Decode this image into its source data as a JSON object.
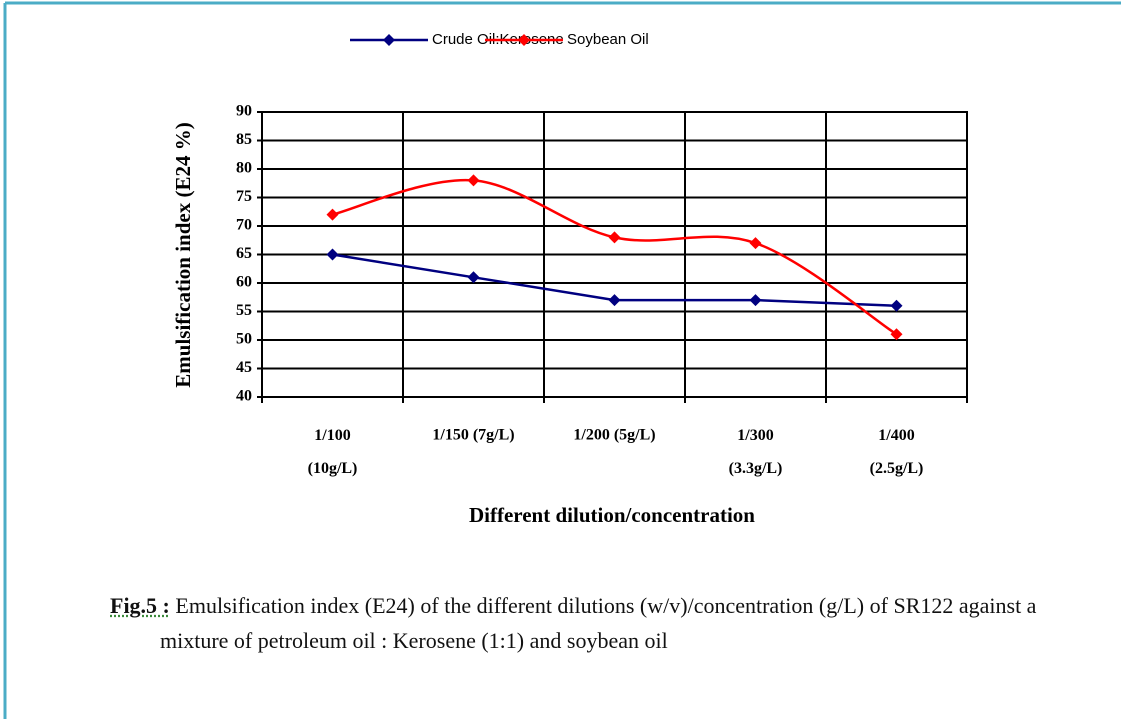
{
  "chart_data": {
    "type": "line",
    "y_label": "Emulsification index (E24 %)",
    "x_label": "Different dilution/concentration",
    "categories": [
      "1/100 (10g/L)",
      "1/150 (7g/L)",
      "1/200 (5g/L)",
      "1/300 (3.3g/L)",
      "1/400 (2.5g/L)"
    ],
    "series": [
      {
        "name": "Crude Oil:Kerosene",
        "color": "#000080",
        "smooth": false,
        "values": [
          65,
          61,
          57,
          57,
          56
        ]
      },
      {
        "name": "Soybean Oil",
        "color": "#ff0000",
        "smooth": true,
        "values": [
          72,
          78,
          68,
          67,
          51
        ]
      }
    ],
    "ylim": [
      40,
      90
    ],
    "yticks": [
      40,
      45,
      50,
      55,
      60,
      65,
      70,
      75,
      80,
      85,
      90
    ],
    "grid": true,
    "legend": "top"
  },
  "caption": {
    "label": "Fig.5 :",
    "text": "Emulsification index (E24) of the different dilutions (w/v)/concentration (g/L) of SR122 against a mixture of petroleum oil : Kerosene (1:1) and soybean oil"
  }
}
